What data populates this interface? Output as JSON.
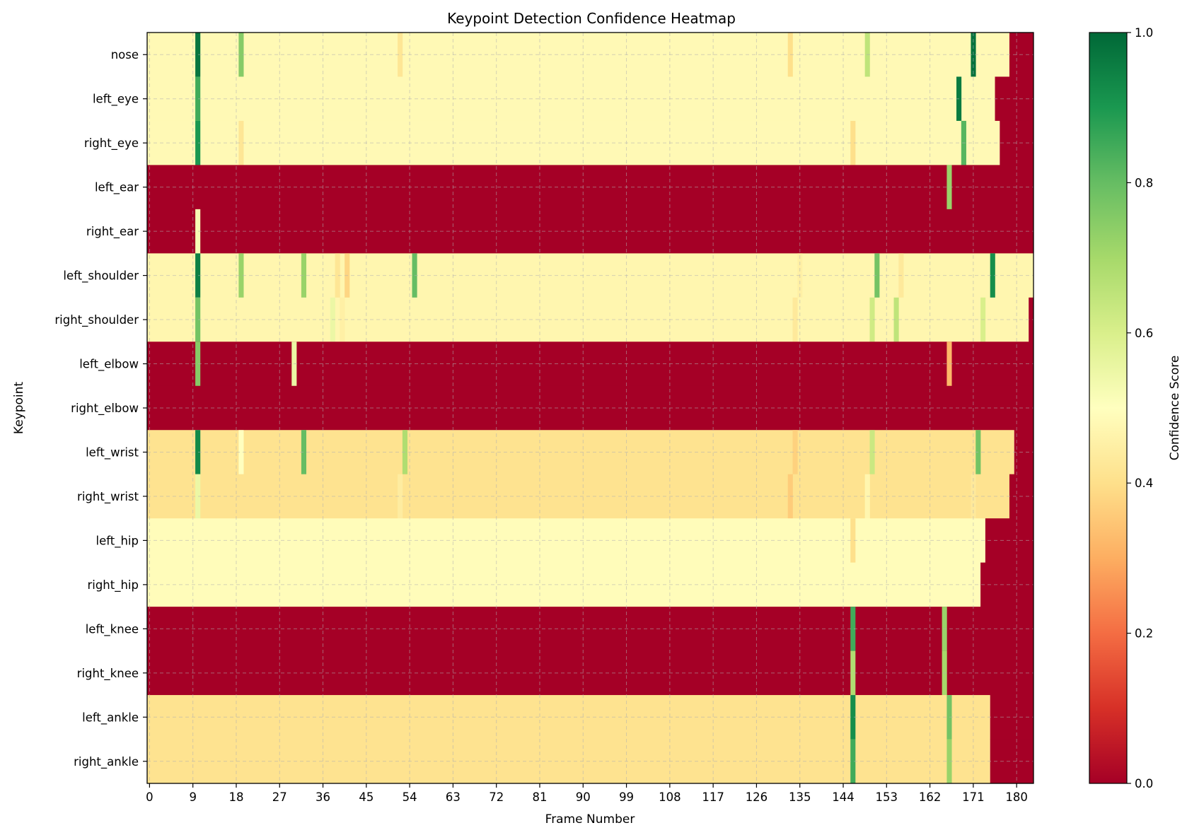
{
  "chart_data": {
    "type": "heatmap",
    "title": "Keypoint Detection Confidence Heatmap",
    "xlabel": "Frame Number",
    "ylabel": "Keypoint",
    "colorbar_label": "Confidence Score",
    "colormap": "RdYlGn",
    "vmin": 0.0,
    "vmax": 1.0,
    "n_frames": 184,
    "xlim": [
      0,
      184
    ],
    "grid": true,
    "x_ticks": [
      0,
      9,
      18,
      27,
      36,
      45,
      54,
      63,
      72,
      81,
      90,
      99,
      108,
      117,
      126,
      135,
      144,
      153,
      162,
      171,
      180
    ],
    "colorbar_ticks": [
      "0.0",
      "0.2",
      "0.4",
      "0.6",
      "0.8",
      "1.0"
    ],
    "keypoints": [
      {
        "name": "nose",
        "base": 0.48,
        "valid_until": 179,
        "spikes": [
          [
            10,
            0.97
          ],
          [
            19,
            0.75
          ],
          [
            52,
            0.42
          ],
          [
            133,
            0.4
          ],
          [
            149,
            0.65
          ],
          [
            171,
            0.98
          ]
        ]
      },
      {
        "name": "left_eye",
        "base": 0.48,
        "valid_until": 176,
        "spikes": [
          [
            10,
            0.85
          ],
          [
            168,
            0.96
          ]
        ]
      },
      {
        "name": "right_eye",
        "base": 0.48,
        "valid_until": 177,
        "spikes": [
          [
            10,
            0.9
          ],
          [
            19,
            0.42
          ],
          [
            146,
            0.4
          ],
          [
            169,
            0.82
          ]
        ]
      },
      {
        "name": "left_ear",
        "base": 0.0,
        "valid_until": 184,
        "spikes": [
          [
            166,
            0.72
          ]
        ]
      },
      {
        "name": "right_ear",
        "base": 0.0,
        "valid_until": 184,
        "spikes": [
          [
            10,
            0.52
          ]
        ]
      },
      {
        "name": "left_shoulder",
        "base": 0.47,
        "valid_until": 184,
        "spikes": [
          [
            10,
            0.95
          ],
          [
            19,
            0.72
          ],
          [
            32,
            0.72
          ],
          [
            39,
            0.42
          ],
          [
            41,
            0.38
          ],
          [
            55,
            0.8
          ],
          [
            135,
            0.45
          ],
          [
            151,
            0.78
          ],
          [
            156,
            0.43
          ],
          [
            175,
            0.92
          ]
        ]
      },
      {
        "name": "right_shoulder",
        "base": 0.47,
        "valid_until": 183,
        "spikes": [
          [
            10,
            0.78
          ],
          [
            38,
            0.55
          ],
          [
            40,
            0.45
          ],
          [
            134,
            0.43
          ],
          [
            150,
            0.62
          ],
          [
            155,
            0.65
          ],
          [
            173,
            0.6
          ]
        ]
      },
      {
        "name": "left_elbow",
        "base": 0.0,
        "valid_until": 184,
        "spikes": [
          [
            10,
            0.75
          ],
          [
            30,
            0.55
          ],
          [
            166,
            0.32
          ]
        ]
      },
      {
        "name": "right_elbow",
        "base": 0.0,
        "valid_until": 184,
        "spikes": []
      },
      {
        "name": "left_wrist",
        "base": 0.41,
        "valid_until": 180,
        "spikes": [
          [
            10,
            0.93
          ],
          [
            19,
            0.5
          ],
          [
            32,
            0.8
          ],
          [
            53,
            0.68
          ],
          [
            134,
            0.37
          ],
          [
            150,
            0.63
          ],
          [
            172,
            0.78
          ]
        ]
      },
      {
        "name": "right_wrist",
        "base": 0.41,
        "valid_until": 179,
        "spikes": [
          [
            10,
            0.55
          ],
          [
            52,
            0.44
          ],
          [
            133,
            0.36
          ],
          [
            149,
            0.47
          ],
          [
            171,
            0.43
          ]
        ]
      },
      {
        "name": "left_hip",
        "base": 0.49,
        "valid_until": 174,
        "spikes": [
          [
            146,
            0.4
          ]
        ]
      },
      {
        "name": "right_hip",
        "base": 0.49,
        "valid_until": 173,
        "spikes": []
      },
      {
        "name": "left_knee",
        "base": 0.0,
        "valid_until": 184,
        "spikes": [
          [
            146,
            0.85
          ],
          [
            165,
            0.72
          ]
        ]
      },
      {
        "name": "right_knee",
        "base": 0.0,
        "valid_until": 184,
        "spikes": [
          [
            146,
            0.68
          ],
          [
            165,
            0.7
          ]
        ]
      },
      {
        "name": "left_ankle",
        "base": 0.41,
        "valid_until": 175,
        "spikes": [
          [
            146,
            0.92
          ],
          [
            166,
            0.78
          ]
        ]
      },
      {
        "name": "right_ankle",
        "base": 0.41,
        "valid_until": 175,
        "spikes": [
          [
            146,
            0.85
          ],
          [
            166,
            0.72
          ]
        ]
      }
    ]
  }
}
